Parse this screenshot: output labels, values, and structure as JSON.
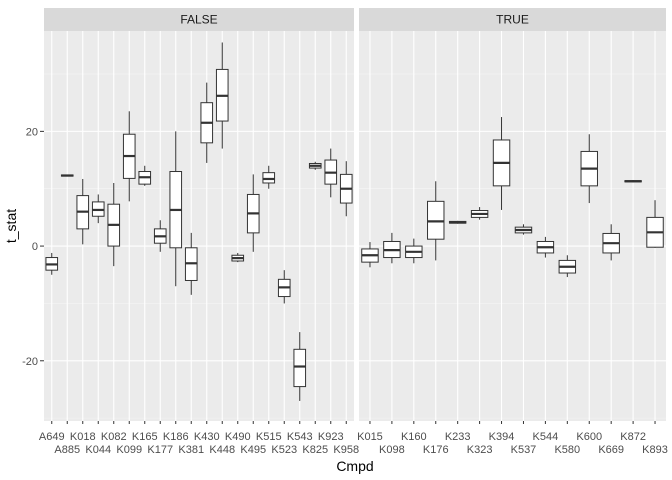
{
  "chart_data": {
    "type": "boxplot",
    "xlabel": "Cmpd",
    "ylabel": "t_stat",
    "ylim": [
      -30.5,
      37.5
    ],
    "yticks": [
      -20,
      0,
      20
    ],
    "grid": true,
    "facets": [
      {
        "label": "FALSE",
        "categories": [
          "A649",
          "A885",
          "K018",
          "K044",
          "K082",
          "K099",
          "K165",
          "K177",
          "K186",
          "K381",
          "K430",
          "K448",
          "K490",
          "K495",
          "K515",
          "K523",
          "K543",
          "K825",
          "K923",
          "K958"
        ],
        "boxes": [
          {
            "cmpd": "A649",
            "min": -5,
            "q1": -4.2,
            "median": -3.2,
            "q3": -2,
            "max": -1.2
          },
          {
            "cmpd": "A885",
            "min": 12.2,
            "q1": 12.2,
            "median": 12.3,
            "q3": 12.4,
            "max": 12.4
          },
          {
            "cmpd": "K018",
            "min": 0.3,
            "q1": 3,
            "median": 6,
            "q3": 8.8,
            "max": 11.7
          },
          {
            "cmpd": "K044",
            "min": 4,
            "q1": 5.2,
            "median": 6.3,
            "q3": 7.7,
            "max": 9
          },
          {
            "cmpd": "K082",
            "min": -3.5,
            "q1": 0,
            "median": 3.7,
            "q3": 7.3,
            "max": 11
          },
          {
            "cmpd": "K099",
            "min": 7.8,
            "q1": 11.8,
            "median": 15.7,
            "q3": 19.5,
            "max": 23.5
          },
          {
            "cmpd": "K165",
            "min": 10.5,
            "q1": 10.8,
            "median": 12,
            "q3": 13,
            "max": 14
          },
          {
            "cmpd": "K177",
            "min": -1,
            "q1": 0.5,
            "median": 1.7,
            "q3": 3,
            "max": 4.5
          },
          {
            "cmpd": "K186",
            "min": -7,
            "q1": -0.3,
            "median": 6.3,
            "q3": 13,
            "max": 20
          },
          {
            "cmpd": "K381",
            "min": -8.5,
            "q1": -6,
            "median": -3,
            "q3": -0.3,
            "max": 2.3
          },
          {
            "cmpd": "K430",
            "min": 14.5,
            "q1": 18,
            "median": 21.5,
            "q3": 25,
            "max": 28.5
          },
          {
            "cmpd": "K448",
            "min": 17,
            "q1": 21.8,
            "median": 26.2,
            "q3": 30.8,
            "max": 35.5
          },
          {
            "cmpd": "K490",
            "min": -2.8,
            "q1": -2.6,
            "median": -2.1,
            "q3": -1.6,
            "max": -1.2
          },
          {
            "cmpd": "K495",
            "min": -1,
            "q1": 2.3,
            "median": 5.7,
            "q3": 9,
            "max": 12.5
          },
          {
            "cmpd": "K515",
            "min": 10,
            "q1": 11,
            "median": 11.7,
            "q3": 12.8,
            "max": 14
          },
          {
            "cmpd": "K523",
            "min": -10,
            "q1": -8.8,
            "median": -7.2,
            "q3": -5.8,
            "max": -4.2
          },
          {
            "cmpd": "K543",
            "min": -27,
            "q1": -24.5,
            "median": -21,
            "q3": -18,
            "max": -15
          },
          {
            "cmpd": "K825",
            "min": 13.3,
            "q1": 13.6,
            "median": 14,
            "q3": 14.4,
            "max": 14.7
          },
          {
            "cmpd": "K923",
            "min": 8.5,
            "q1": 10.8,
            "median": 12.8,
            "q3": 15,
            "max": 17
          },
          {
            "cmpd": "K958",
            "min": 5.2,
            "q1": 7.5,
            "median": 10,
            "q3": 12.5,
            "max": 14.8
          }
        ]
      },
      {
        "label": "TRUE",
        "categories": [
          "K015",
          "K098",
          "K160",
          "K176",
          "K233",
          "K323",
          "K394",
          "K537",
          "K544",
          "K580",
          "K600",
          "K669",
          "K872",
          "K893"
        ],
        "boxes": [
          {
            "cmpd": "K015",
            "min": -3.7,
            "q1": -2.8,
            "median": -1.6,
            "q3": -0.5,
            "max": 0.7
          },
          {
            "cmpd": "K098",
            "min": -3,
            "q1": -2,
            "median": -0.7,
            "q3": 0.8,
            "max": 2.3
          },
          {
            "cmpd": "K160",
            "min": -3,
            "q1": -2,
            "median": -1,
            "q3": 0,
            "max": 1.3
          },
          {
            "cmpd": "K176",
            "min": -2.5,
            "q1": 1.2,
            "median": 4.3,
            "q3": 7.8,
            "max": 11.3
          },
          {
            "cmpd": "K233",
            "min": 3.9,
            "q1": 4,
            "median": 4.1,
            "q3": 4.3,
            "max": 4.4
          },
          {
            "cmpd": "K323",
            "min": 4.6,
            "q1": 5,
            "median": 5.6,
            "q3": 6.2,
            "max": 6.8
          },
          {
            "cmpd": "K394",
            "min": 6.3,
            "q1": 10.5,
            "median": 14.5,
            "q3": 18.5,
            "max": 22.5
          },
          {
            "cmpd": "K537",
            "min": 2,
            "q1": 2.3,
            "median": 2.8,
            "q3": 3.3,
            "max": 3.8
          },
          {
            "cmpd": "K544",
            "min": -2,
            "q1": -1.2,
            "median": -0.2,
            "q3": 0.8,
            "max": 1.6
          },
          {
            "cmpd": "K580",
            "min": -5.4,
            "q1": -4.7,
            "median": -3.6,
            "q3": -2.5,
            "max": -1.6
          },
          {
            "cmpd": "K600",
            "min": 7.5,
            "q1": 10.5,
            "median": 13.5,
            "q3": 16.5,
            "max": 19.5
          },
          {
            "cmpd": "K669",
            "min": -2.5,
            "q1": -1.2,
            "median": 0.5,
            "q3": 2.2,
            "max": 3.8
          },
          {
            "cmpd": "K872",
            "min": 11.1,
            "q1": 11.2,
            "median": 11.3,
            "q3": 11.4,
            "max": 11.5
          },
          {
            "cmpd": "K893",
            "min": -0.3,
            "q1": -0.2,
            "median": 2.4,
            "q3": 5,
            "max": 8
          }
        ]
      }
    ]
  }
}
